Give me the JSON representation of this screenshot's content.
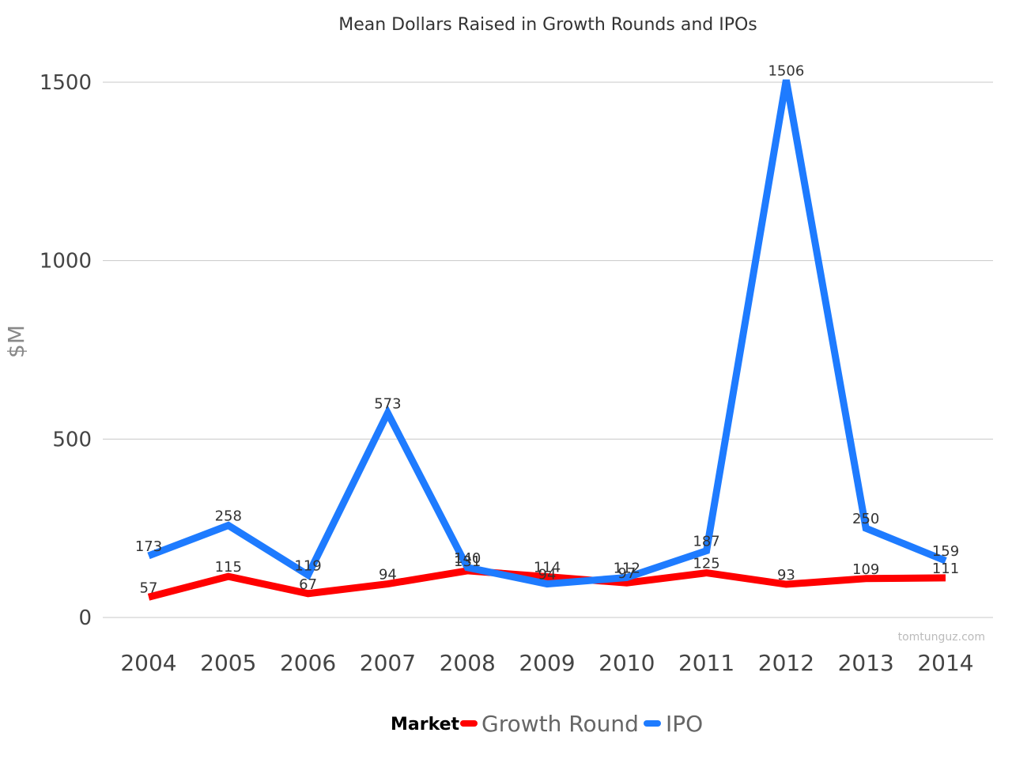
{
  "chart_data": {
    "type": "line",
    "title": "Mean Dollars Raised in Growth Rounds and IPOs",
    "xlabel": "",
    "ylabel": "$M",
    "categories": [
      "2004",
      "2005",
      "2006",
      "2007",
      "2008",
      "2009",
      "2010",
      "2011",
      "2012",
      "2013",
      "2014"
    ],
    "ylim": [
      0,
      1500
    ],
    "yticks": [
      0,
      500,
      1000,
      1500
    ],
    "grid": true,
    "legend_title": "Market",
    "legend_placement": "bottom",
    "series": [
      {
        "name": "Growth Round",
        "color": "#ff0000",
        "values": [
          57,
          115,
          67,
          94,
          131,
          114,
          97,
          125,
          93,
          109,
          111
        ]
      },
      {
        "name": "IPO",
        "color": "#1e7bff",
        "values": [
          173,
          258,
          119,
          573,
          140,
          94,
          112,
          187,
          1506,
          250,
          159
        ]
      }
    ],
    "watermark": "tomtunguz.com"
  }
}
